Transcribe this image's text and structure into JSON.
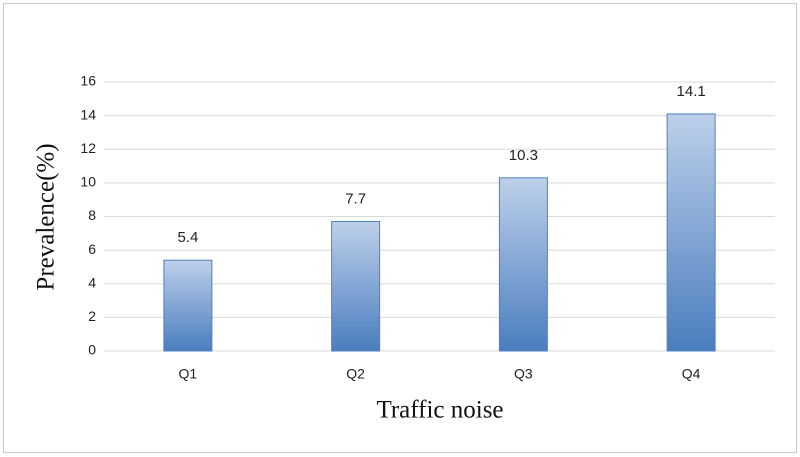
{
  "chart_data": {
    "type": "bar",
    "x_label": "Traffic noise",
    "y_label": "Prevalence(%)",
    "categories": [
      "Q1",
      "Q2",
      "Q3",
      "Q4"
    ],
    "values": [
      5.4,
      7.7,
      10.3,
      14.1
    ],
    "color": "#4f81bd",
    "show_values": true,
    "ylim": [
      0,
      16
    ],
    "yticks": [
      0,
      2,
      4,
      6,
      8,
      10,
      12,
      14,
      16
    ],
    "grid": true
  }
}
